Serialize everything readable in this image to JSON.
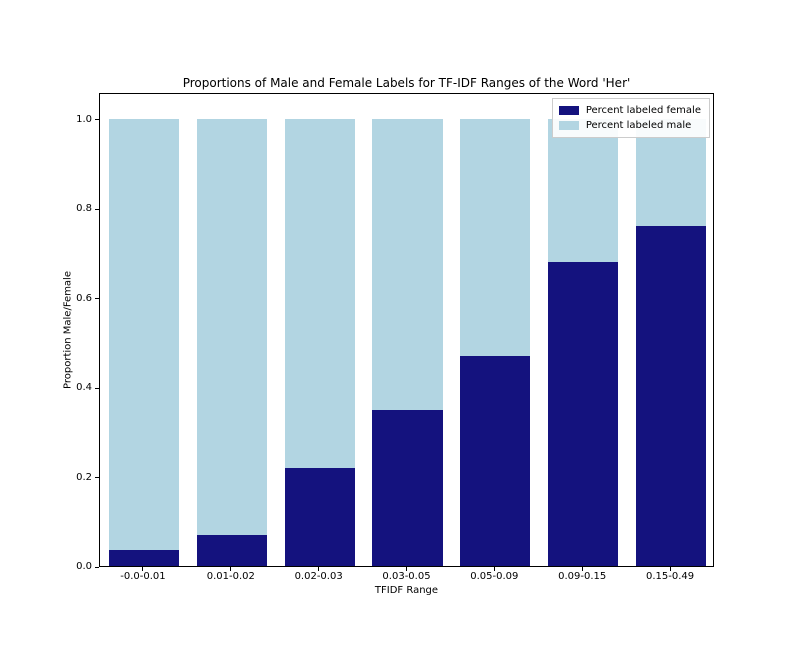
{
  "chart_data": {
    "type": "bar",
    "stacked": true,
    "title": "Proportions of Male and Female Labels for TF-IDF Ranges of the Word 'Her'",
    "xlabel": "TFIDF Range",
    "ylabel": "Proportion Male/Female",
    "categories": [
      "-0.0-0.01",
      "0.01-0.02",
      "0.02-0.03",
      "0.03-0.05",
      "0.05-0.09",
      "0.09-0.15",
      "0.15-0.49"
    ],
    "series": [
      {
        "name": "Percent labeled female",
        "color": "#14127E",
        "values": [
          0.035,
          0.07,
          0.22,
          0.35,
          0.47,
          0.68,
          0.76
        ]
      },
      {
        "name": "Percent labeled male",
        "color": "#B2D5E2",
        "values": [
          0.965,
          0.93,
          0.78,
          0.65,
          0.53,
          0.32,
          0.24
        ]
      }
    ],
    "ylim": [
      0,
      1.06
    ],
    "yticks": [
      0.0,
      0.2,
      0.4,
      0.6,
      0.8,
      1.0
    ],
    "ytick_labels": [
      "0.0",
      "0.2",
      "0.4",
      "0.6",
      "0.8",
      "1.0"
    ],
    "legend_position": "upper right",
    "grid": false,
    "background_color": "#ffffff"
  }
}
